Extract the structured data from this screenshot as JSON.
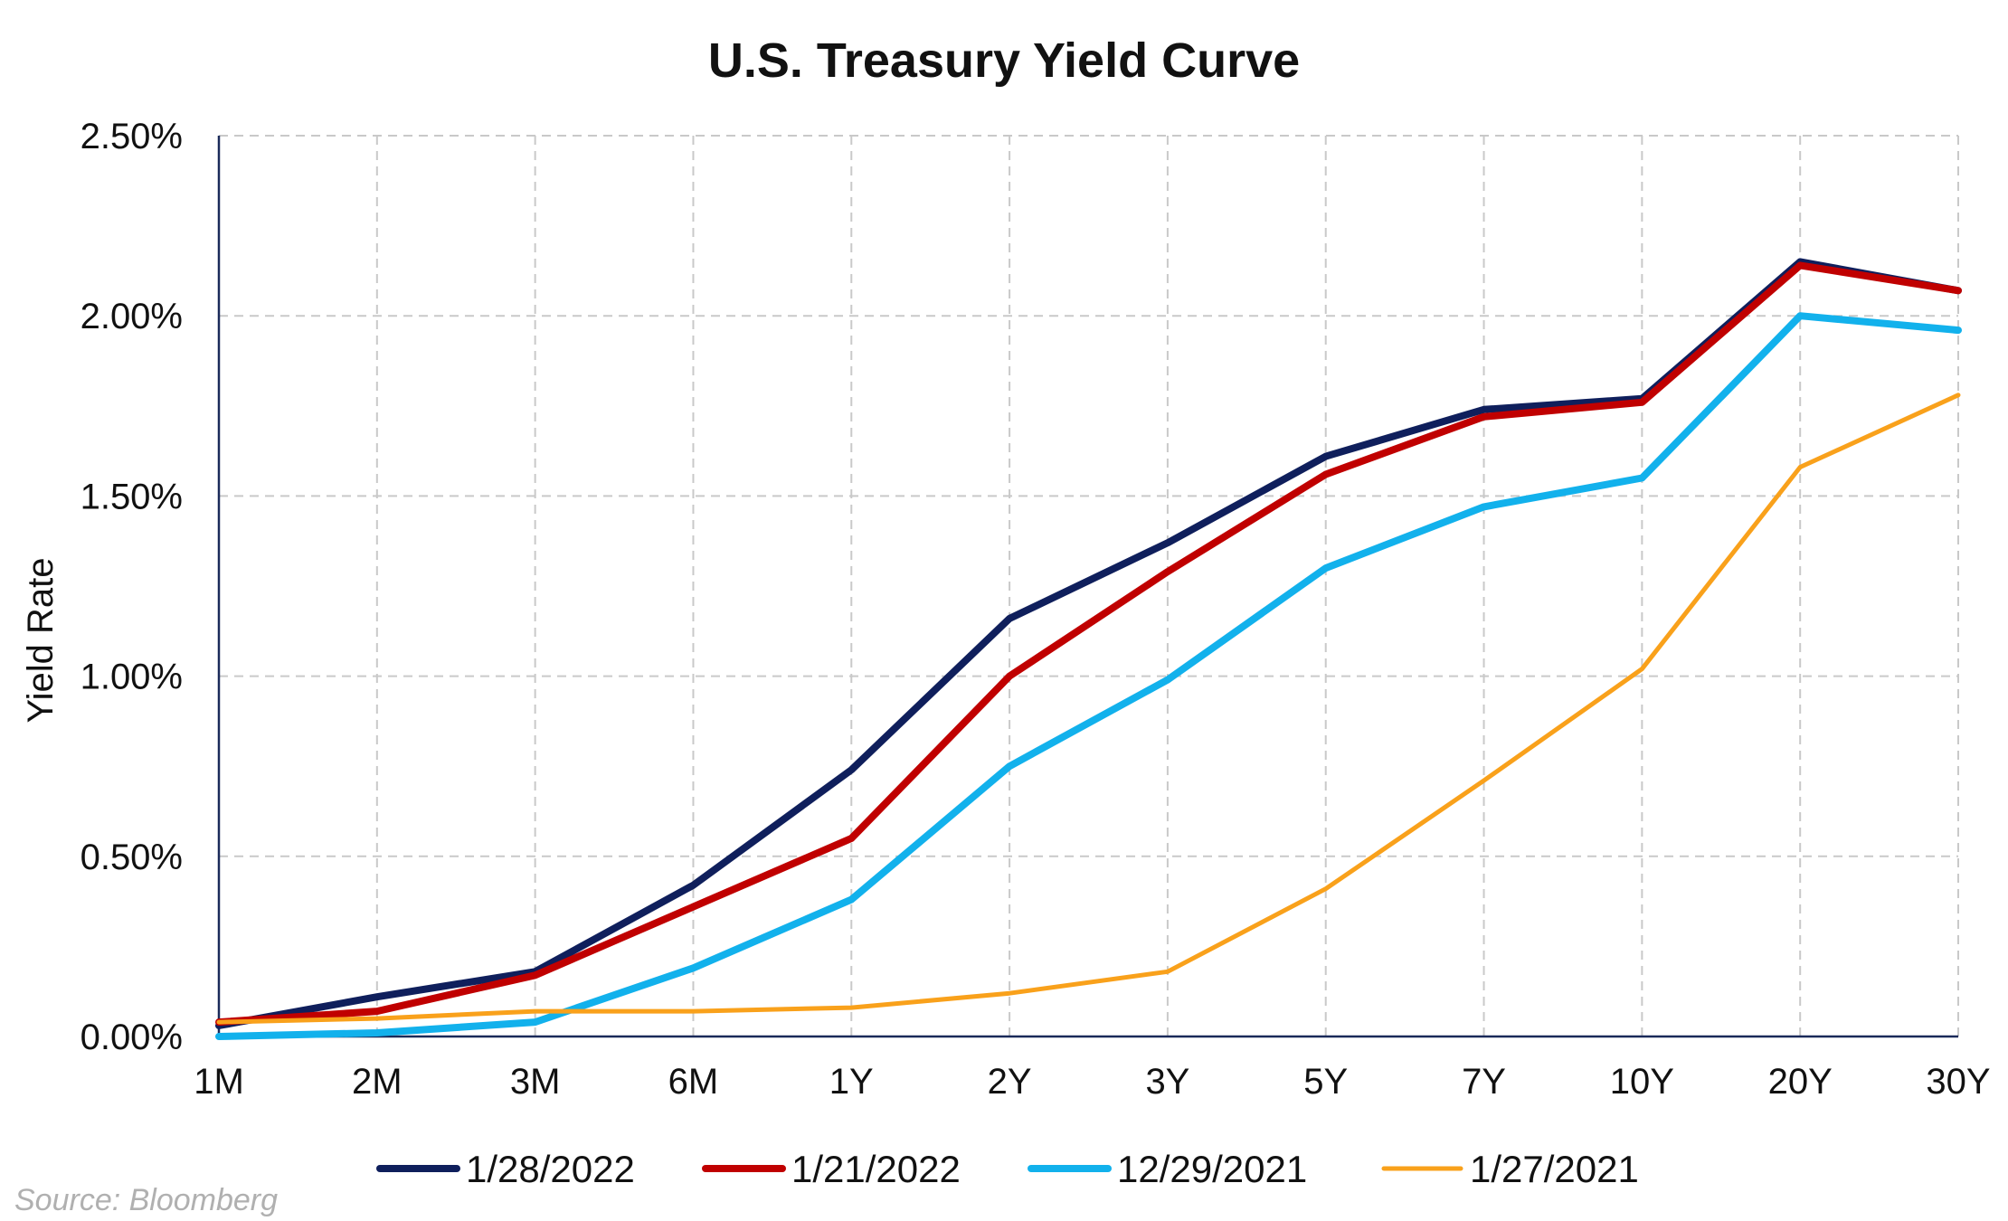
{
  "chart_data": {
    "type": "line",
    "title": "U.S. Treasury Yield Curve",
    "xlabel": "",
    "ylabel": "Yield Rate",
    "categories": [
      "1M",
      "2M",
      "3M",
      "6M",
      "1Y",
      "2Y",
      "3Y",
      "5Y",
      "7Y",
      "10Y",
      "20Y",
      "30Y"
    ],
    "ylim": [
      0,
      2.5
    ],
    "yticks": [
      0,
      0.5,
      1.0,
      1.5,
      2.0,
      2.5
    ],
    "ytick_labels": [
      "0.00%",
      "0.50%",
      "1.00%",
      "1.50%",
      "2.00%",
      "2.50%"
    ],
    "grid": true,
    "legend_position": "bottom",
    "series": [
      {
        "name": "1/28/2022",
        "color": "#0f1f5c",
        "values": [
          0.03,
          0.11,
          0.18,
          0.42,
          0.74,
          1.16,
          1.37,
          1.61,
          1.74,
          1.77,
          2.15,
          2.07
        ]
      },
      {
        "name": "1/21/2022",
        "color": "#c00000",
        "values": [
          0.04,
          0.07,
          0.17,
          0.36,
          0.55,
          1.0,
          1.29,
          1.56,
          1.72,
          1.76,
          2.14,
          2.07
        ]
      },
      {
        "name": "12/29/2021",
        "color": "#12b1ec",
        "values": [
          0.0,
          0.01,
          0.04,
          0.19,
          0.38,
          0.75,
          0.99,
          1.3,
          1.47,
          1.55,
          2.0,
          1.96
        ]
      },
      {
        "name": "1/27/2021",
        "color": "#f9a11b",
        "values": [
          0.04,
          0.05,
          0.07,
          0.07,
          0.08,
          0.12,
          0.18,
          0.41,
          0.71,
          1.02,
          1.58,
          1.78
        ]
      }
    ]
  },
  "source": "Source: Bloomberg"
}
